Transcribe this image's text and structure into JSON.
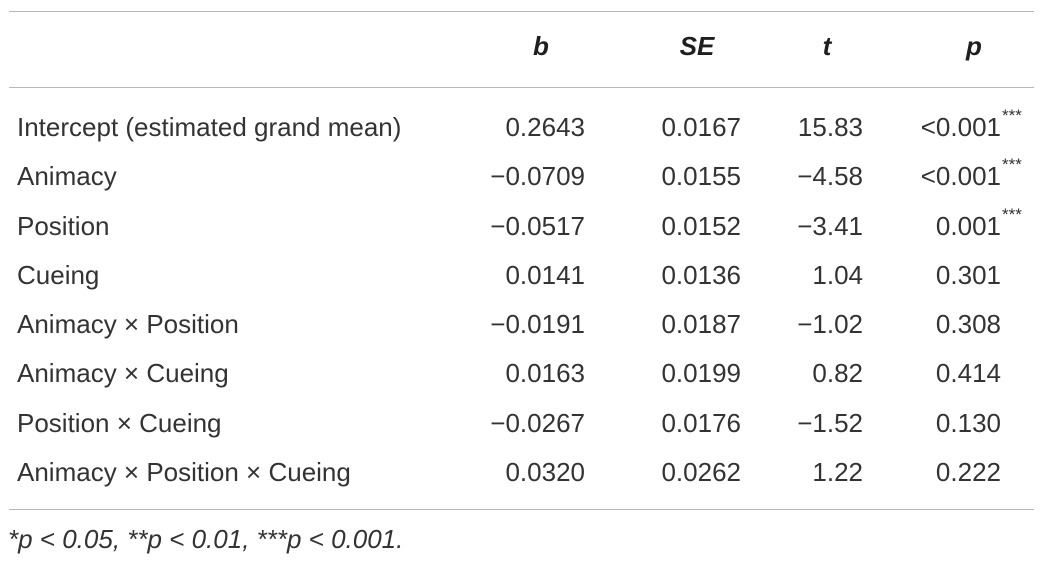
{
  "table": {
    "columns": [
      "",
      "b",
      "SE",
      "t",
      "p"
    ],
    "rows": [
      {
        "term": "Intercept (estimated grand mean)",
        "b": "0.2643",
        "se": "0.0167",
        "t": "15.83",
        "p": "<0.001",
        "stars": "***"
      },
      {
        "term": "Animacy",
        "b": "−0.0709",
        "se": "0.0155",
        "t": "−4.58",
        "p": "<0.001",
        "stars": "***"
      },
      {
        "term": "Position",
        "b": "−0.0517",
        "se": "0.0152",
        "t": "−3.41",
        "p": "0.001",
        "stars": "***"
      },
      {
        "term": "Cueing",
        "b": "0.0141",
        "se": "0.0136",
        "t": "1.04",
        "p": "0.301",
        "stars": ""
      },
      {
        "term": "Animacy × Position",
        "b": "−0.0191",
        "se": "0.0187",
        "t": "−1.02",
        "p": "0.308",
        "stars": ""
      },
      {
        "term": "Animacy × Cueing",
        "b": "0.0163",
        "se": "0.0199",
        "t": "0.82",
        "p": "0.414",
        "stars": ""
      },
      {
        "term": "Position × Cueing",
        "b": "−0.0267",
        "se": "0.0176",
        "t": "−1.52",
        "p": "0.130",
        "stars": ""
      },
      {
        "term": "Animacy × Position × Cueing",
        "b": "0.0320",
        "se": "0.0262",
        "t": "1.22",
        "p": "0.222",
        "stars": ""
      }
    ],
    "footnote": "*p < 0.05, **p < 0.01, ***p < 0.001."
  }
}
